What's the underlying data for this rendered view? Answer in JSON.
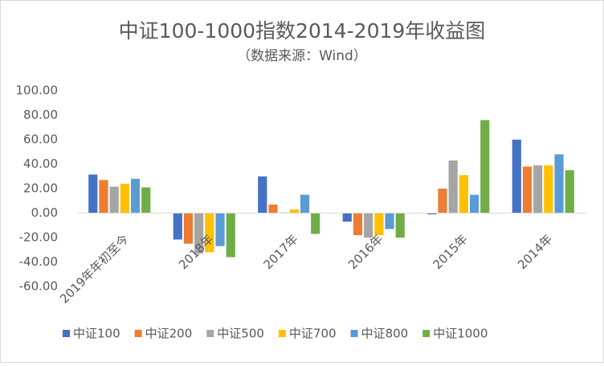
{
  "chart_data": {
    "type": "bar",
    "title": "中证100-1000指数2014-2019年收益图",
    "subtitle": "（数据来源：Wind）",
    "categories": [
      "2019年年初至今",
      "2018年",
      "2017年",
      "2016年",
      "2015年",
      "2014年"
    ],
    "series": [
      {
        "name": "中证100",
        "color": "#4472c4",
        "values": [
          31.5,
          -21.6,
          30,
          -7,
          -1,
          60
        ]
      },
      {
        "name": "中证200",
        "color": "#ed7d31",
        "values": [
          27,
          -25,
          7,
          -18,
          20,
          38
        ]
      },
      {
        "name": "中证500",
        "color": "#a5a5a5",
        "values": [
          21.6,
          -33,
          0.5,
          -20,
          43,
          39
        ]
      },
      {
        "name": "中证700",
        "color": "#ffc000",
        "values": [
          24,
          -32,
          3,
          -18,
          31,
          39
        ]
      },
      {
        "name": "中证800",
        "color": "#5b9bd5",
        "values": [
          28,
          -27,
          15,
          -13,
          15,
          48
        ]
      },
      {
        "name": "中证1000",
        "color": "#70ad47",
        "values": [
          21,
          -36,
          -17,
          -20,
          76,
          35
        ]
      }
    ],
    "ylim": [
      -60,
      100
    ],
    "yticks": [
      {
        "value": -60,
        "label": "-60.00"
      },
      {
        "value": -40,
        "label": "-40.00"
      },
      {
        "value": -20,
        "label": "-20.00"
      },
      {
        "value": 0,
        "label": "0.00"
      },
      {
        "value": 20,
        "label": "20.00"
      },
      {
        "value": 40,
        "label": "40.00"
      },
      {
        "value": 60,
        "label": "60.00"
      },
      {
        "value": 80,
        "label": "80.00"
      },
      {
        "value": 100,
        "label": "100.00"
      }
    ],
    "grid": false,
    "legend": "bottom"
  }
}
